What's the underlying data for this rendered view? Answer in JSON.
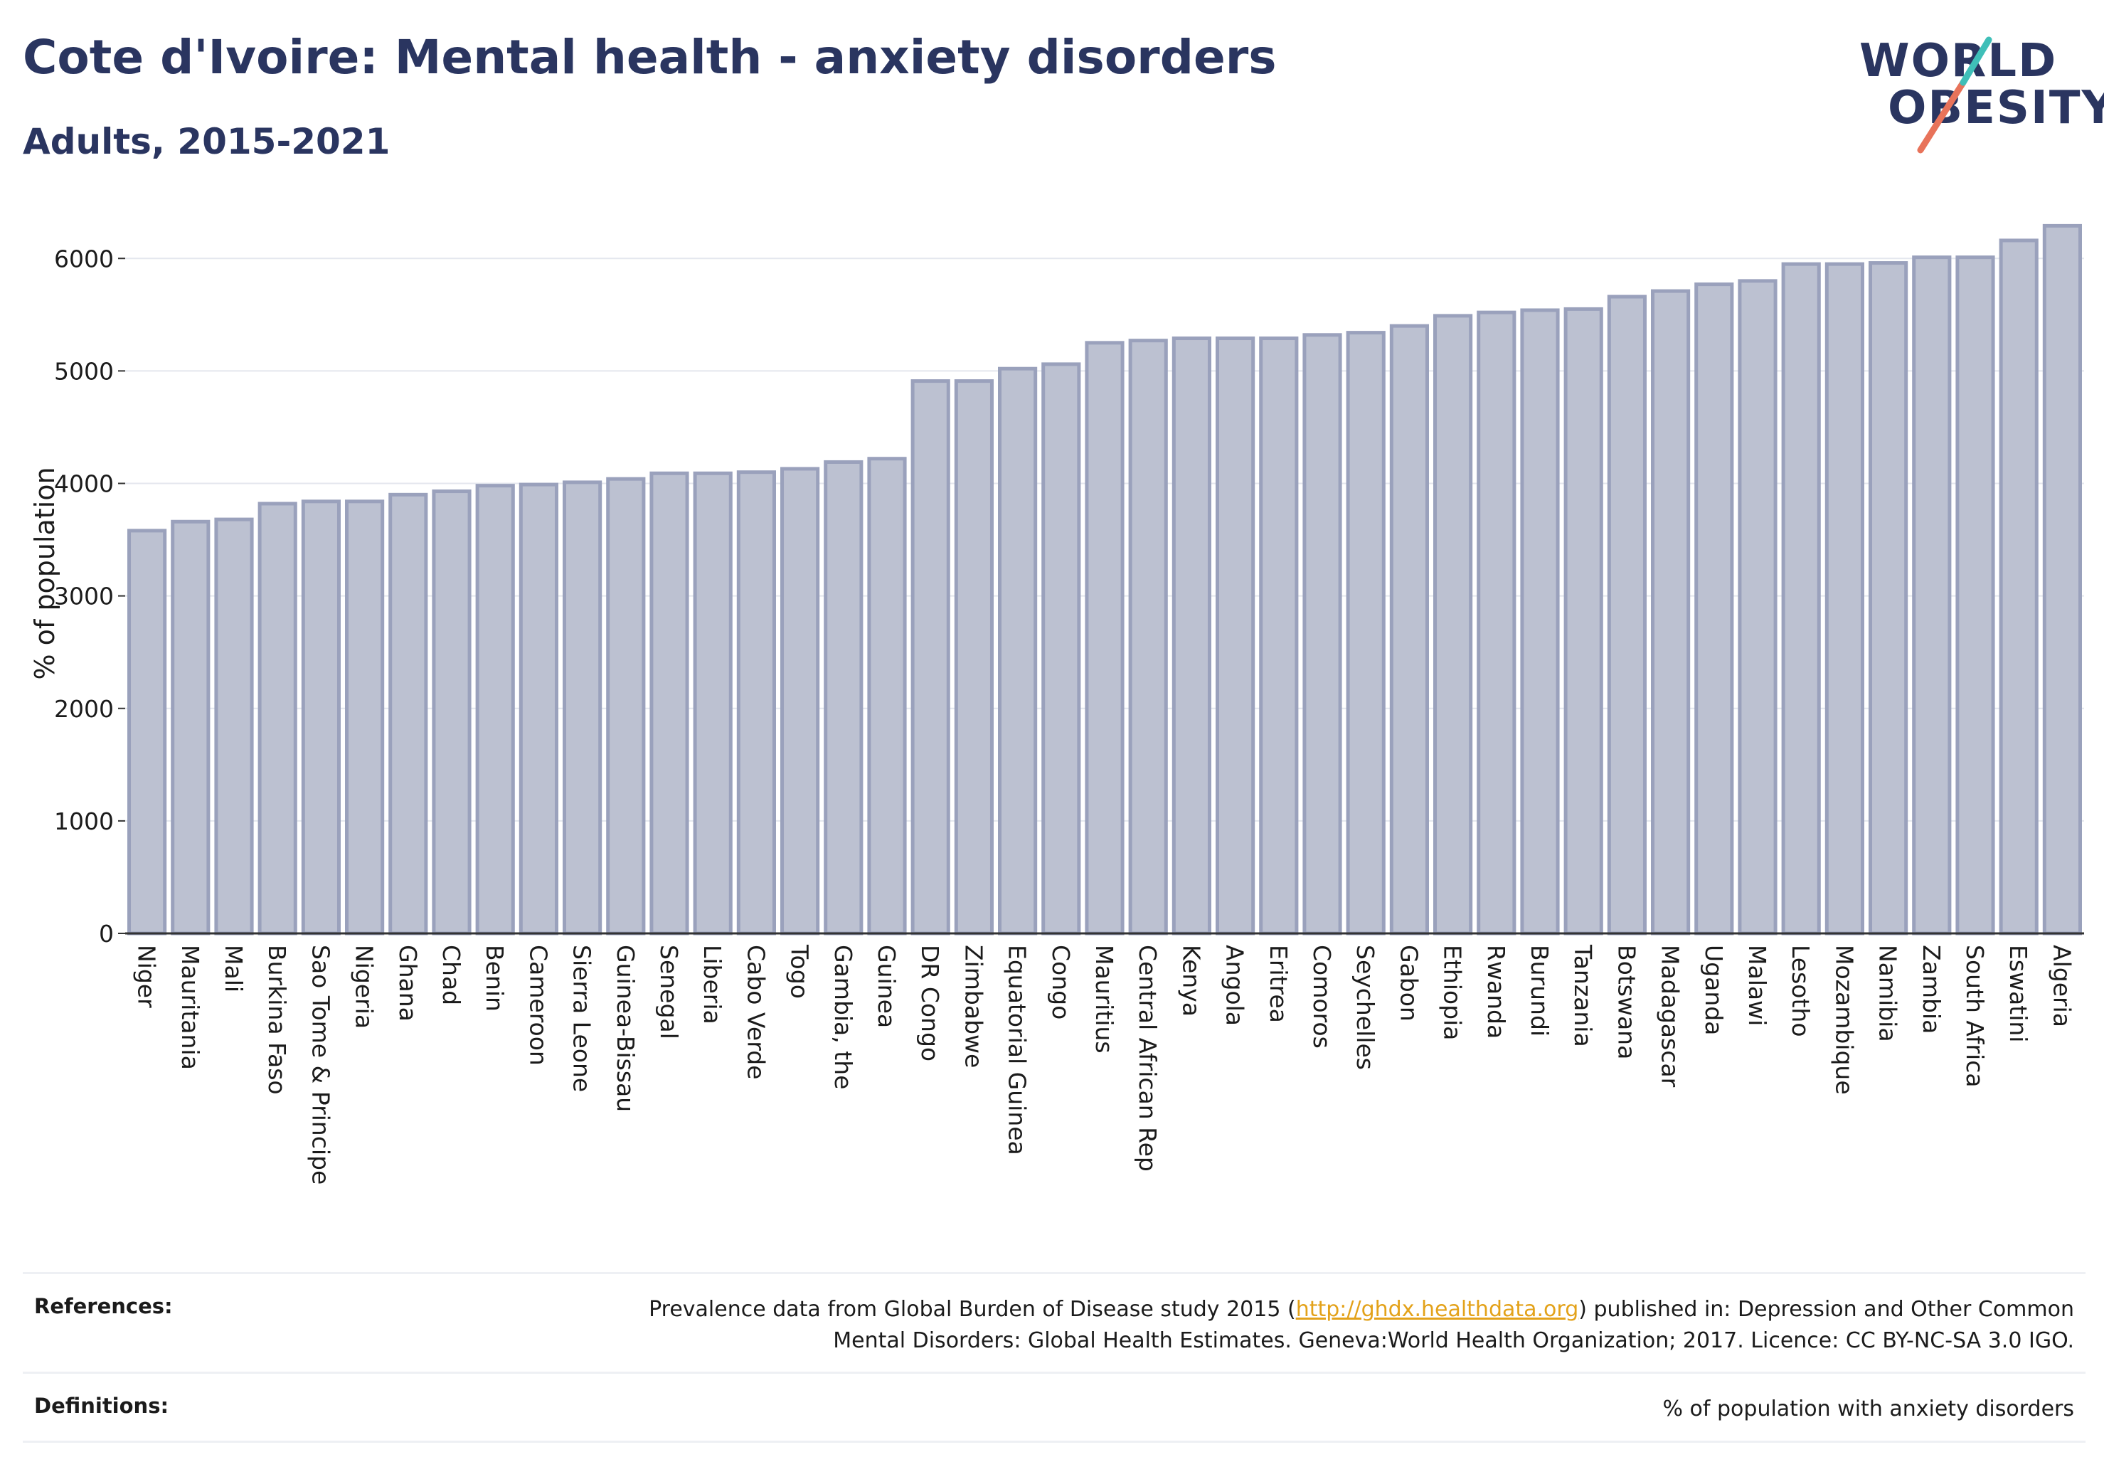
{
  "header": {
    "title": "Cote d'Ivoire: Mental health - anxiety disorders",
    "subtitle": "Adults, 2015-2021"
  },
  "logo": {
    "line1": "WORLD",
    "line2": "OBESITY",
    "text_color": "#2a3560",
    "slash_colors": [
      "#e8735a",
      "#3fbfb8"
    ]
  },
  "chart_data": {
    "type": "bar",
    "ylabel": "% of population",
    "xlabel": "",
    "ylim": [
      0,
      6400
    ],
    "yticks": [
      0,
      1000,
      2000,
      3000,
      4000,
      5000,
      6000
    ],
    "grid": true,
    "bar_fill": "#bcc1d1",
    "bar_stroke": "#9aa1bc",
    "categories": [
      "Niger",
      "Mauritania",
      "Mali",
      "Burkina Faso",
      "Sao Tome & Principe",
      "Nigeria",
      "Ghana",
      "Chad",
      "Benin",
      "Cameroon",
      "Sierra Leone",
      "Guinea-Bissau",
      "Senegal",
      "Liberia",
      "Cabo Verde",
      "Togo",
      "Gambia, the",
      "Guinea",
      "DR Congo",
      "Zimbabwe",
      "Equatorial Guinea",
      "Congo",
      "Mauritius",
      "Central African Rep",
      "Kenya",
      "Angola",
      "Eritrea",
      "Comoros",
      "Seychelles",
      "Gabon",
      "Ethiopia",
      "Rwanda",
      "Burundi",
      "Tanzania",
      "Botswana",
      "Madagascar",
      "Uganda",
      "Malawi",
      "Lesotho",
      "Mozambique",
      "Namibia",
      "Zambia",
      "South Africa",
      "Eswatini",
      "Algeria"
    ],
    "values": [
      3580,
      3660,
      3680,
      3820,
      3840,
      3840,
      3900,
      3930,
      3980,
      3990,
      4010,
      4040,
      4090,
      4090,
      4100,
      4130,
      4190,
      4220,
      4910,
      4910,
      5020,
      5060,
      5250,
      5270,
      5290,
      5290,
      5290,
      5320,
      5340,
      5400,
      5490,
      5520,
      5540,
      5550,
      5660,
      5710,
      5770,
      5800,
      5950,
      5950,
      5960,
      6010,
      6010,
      6160,
      6290
    ]
  },
  "references": {
    "label": "References:",
    "text_before": "Prevalence data from Global Burden of Disease study 2015 (",
    "link": "http://ghdx.healthdata.org",
    "text_line1_after": ") published in: Depression and Other Common",
    "text_line2": "Mental Disorders: Global Health Estimates. Geneva:World Health Organization; 2017. Licence: CC BY-NC-SA 3.0 IGO."
  },
  "definitions": {
    "label": "Definitions:",
    "text": "% of population with anxiety disorders"
  }
}
